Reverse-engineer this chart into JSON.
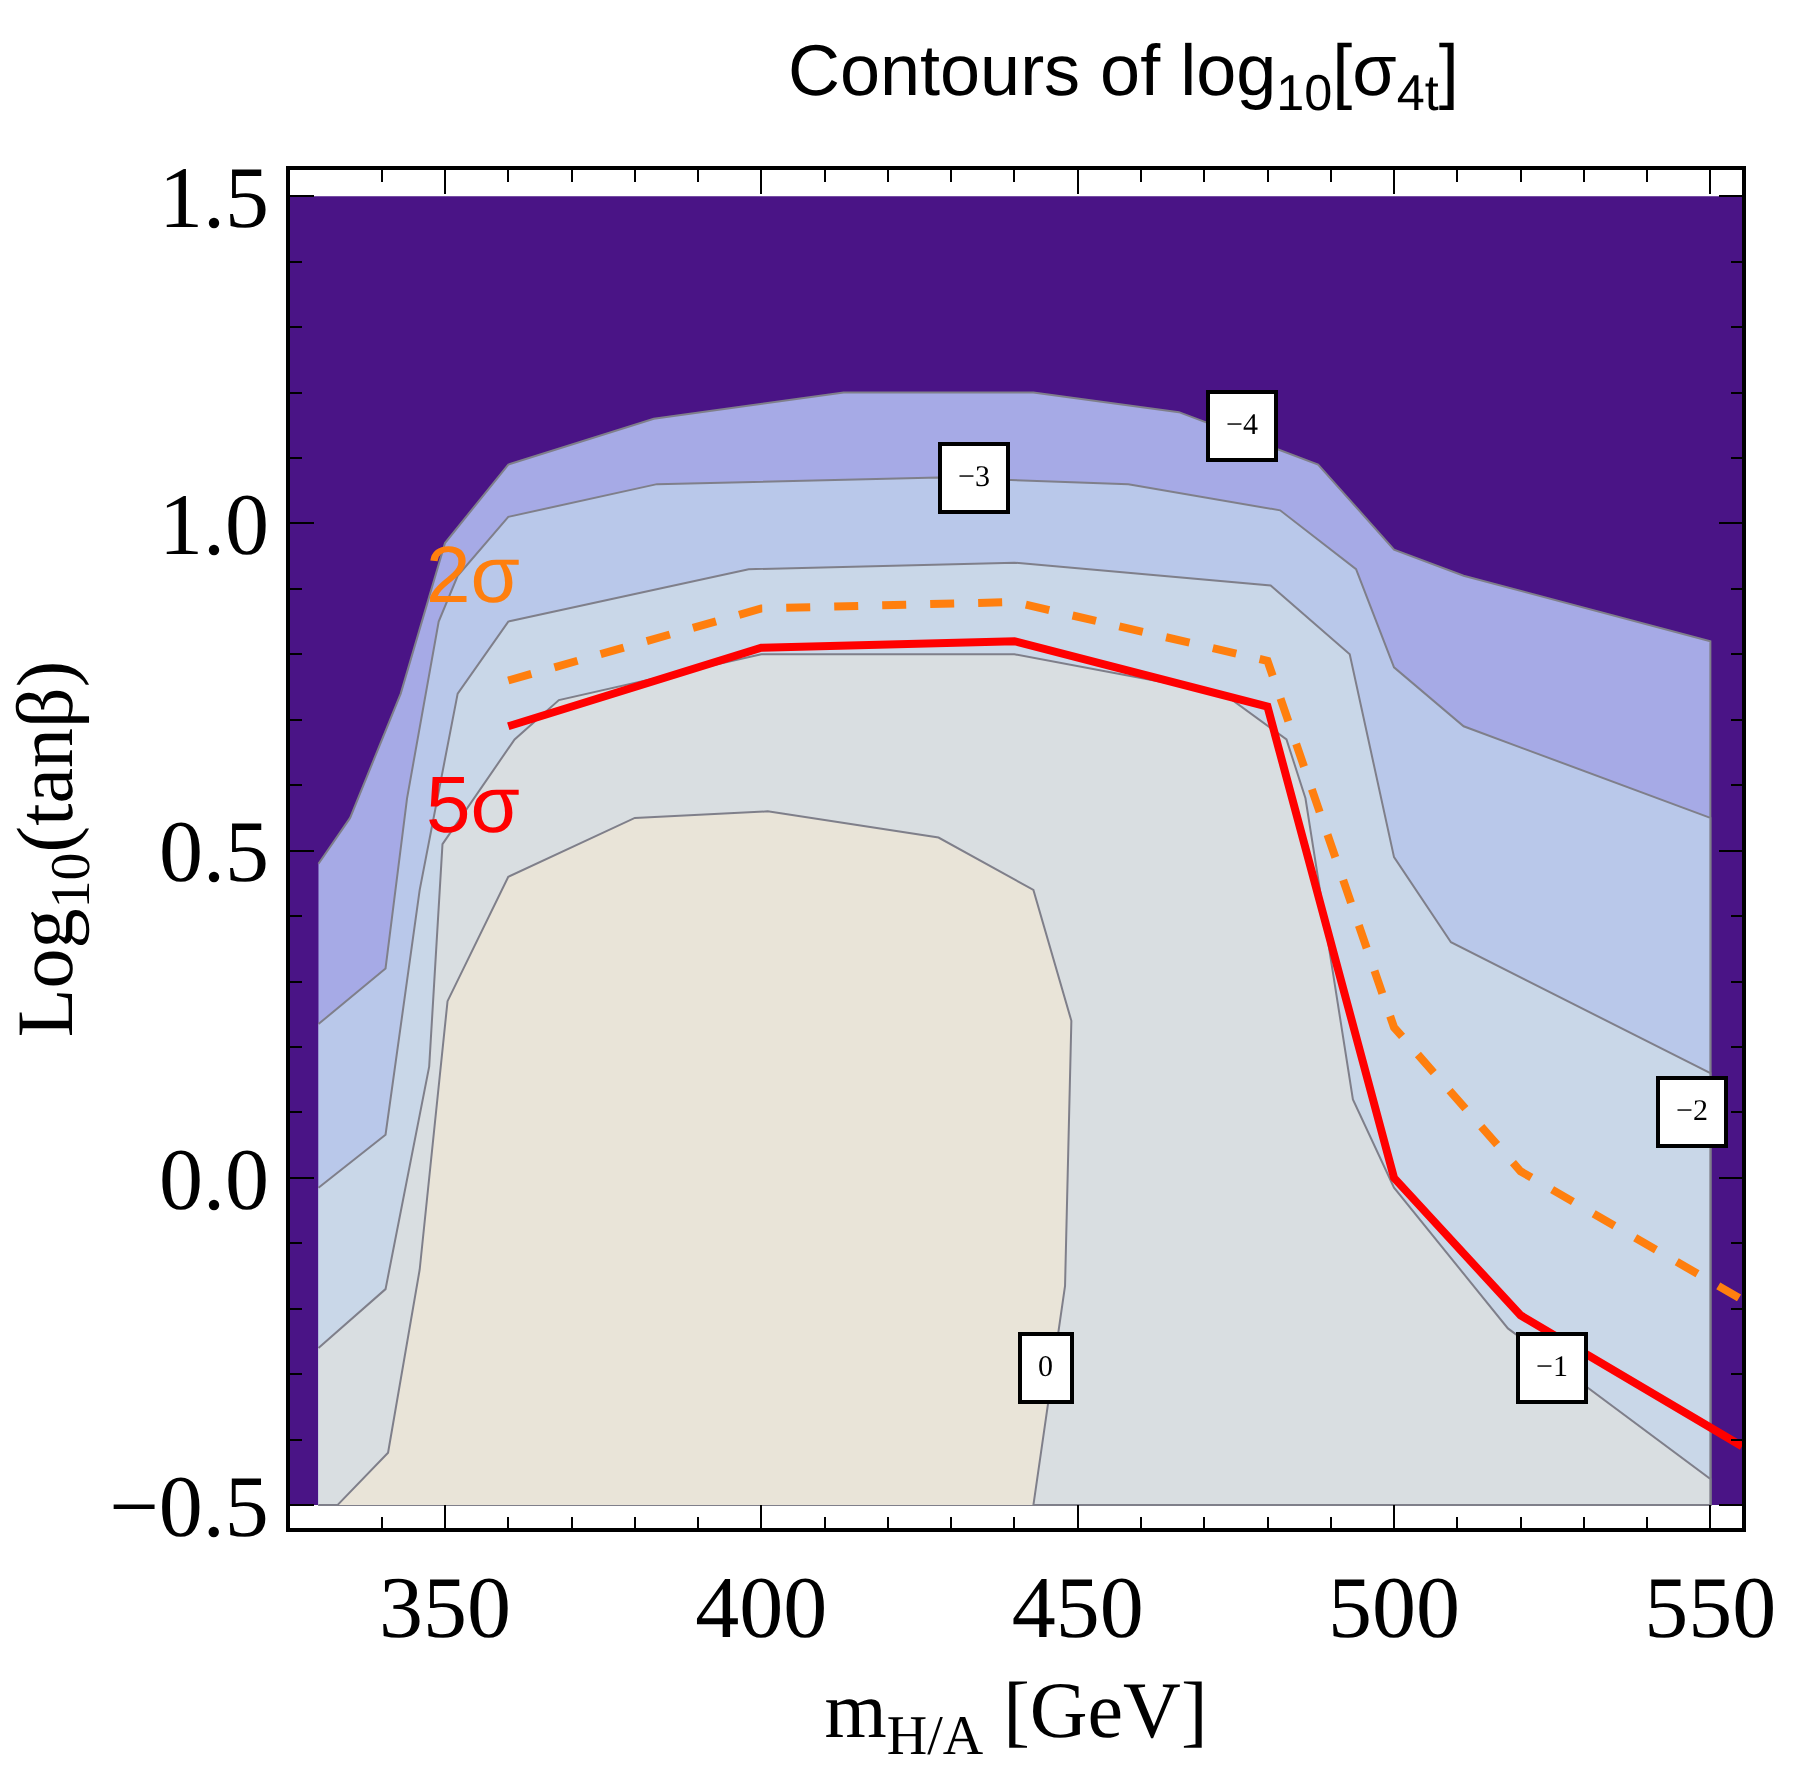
{
  "chart_data": {
    "type": "area",
    "title": "Contours of log$_{10}$[σ$_{4t}$]",
    "xlabel": "m$_{H/A}$ [GeV]",
    "ylabel": "Log$_{10}$(tanβ)",
    "xlim": [
      325.5,
      555
    ],
    "ylim": [
      -0.535,
      1.54
    ],
    "xticks": [
      {
        "value": 340,
        "label": null
      },
      350,
      {
        "value": 360,
        "label": null
      },
      {
        "value": 370,
        "label": null
      },
      {
        "value": 380,
        "label": null
      },
      {
        "value": 390,
        "label": null
      },
      400,
      {
        "value": 410,
        "label": null
      },
      {
        "value": 420,
        "label": null
      },
      {
        "value": 430,
        "label": null
      },
      {
        "value": 440,
        "label": null
      },
      450,
      {
        "value": 460,
        "label": null
      },
      {
        "value": 470,
        "label": null
      },
      {
        "value": 480,
        "label": null
      },
      {
        "value": 490,
        "label": null
      },
      500,
      {
        "value": 510,
        "label": null
      },
      {
        "value": 520,
        "label": null
      },
      {
        "value": 530,
        "label": null
      },
      {
        "value": 540,
        "label": null
      },
      550
    ],
    "yticks": [
      {
        "value": -0.5,
        "label": "−0.5"
      },
      {
        "value": -0.4,
        "label": null
      },
      {
        "value": -0.3,
        "label": null
      },
      {
        "value": -0.2,
        "label": null
      },
      {
        "value": -0.1,
        "label": null
      },
      {
        "value": 0,
        "label": "0.0"
      },
      {
        "value": 0.1,
        "label": null
      },
      {
        "value": 0.2,
        "label": null
      },
      {
        "value": 0.3,
        "label": null
      },
      {
        "value": 0.4,
        "label": null
      },
      {
        "value": 0.5,
        "label": "0.5"
      },
      {
        "value": 0.6,
        "label": null
      },
      {
        "value": 0.7,
        "label": null
      },
      {
        "value": 0.8,
        "label": null
      },
      {
        "value": 0.9,
        "label": null
      },
      {
        "value": 1.0,
        "label": "1.0"
      },
      {
        "value": 1.1,
        "label": null
      },
      {
        "value": 1.2,
        "label": null
      },
      {
        "value": 1.3,
        "label": null
      },
      {
        "value": 1.4,
        "label": null
      },
      {
        "value": 1.5,
        "label": "1.5"
      }
    ],
    "grid": false,
    "legend": false,
    "bands": [
      {
        "axis": "y",
        "from": -0.5,
        "to": 1.5,
        "color": "#4a1486"
      }
    ],
    "series": [
      {
        "color": "#a6aae6",
        "x": [
          330,
          335,
          343,
          350,
          360,
          383,
          413,
          443,
          466,
          488,
          500,
          511,
          550,
          550,
          330
        ],
        "values": [
          0.48,
          0.55,
          0.74,
          0.97,
          1.09,
          1.16,
          1.2,
          1.2,
          1.17,
          1.09,
          0.96,
          0.92,
          0.82,
          -0.5,
          -0.5
        ]
      },
      {
        "color": "#b9c8ea",
        "x": [
          330,
          340.6,
          344,
          349,
          352,
          360,
          383.5,
          428,
          458,
          482,
          494,
          500,
          511,
          550,
          550,
          330
        ],
        "values": [
          0.235,
          0.32,
          0.58,
          0.85,
          0.92,
          1.01,
          1.06,
          1.07,
          1.06,
          1.02,
          0.93,
          0.78,
          0.69,
          0.55,
          -0.5,
          -0.5
        ]
      },
      {
        "color": "#c9d7e8",
        "x": [
          330,
          340.6,
          346,
          352,
          360,
          398,
          440,
          480.5,
          493,
          500,
          509,
          550,
          550,
          330
        ],
        "values": [
          -0.015,
          0.066,
          0.44,
          0.74,
          0.85,
          0.93,
          0.94,
          0.905,
          0.8,
          0.49,
          0.36,
          0.16,
          -0.5,
          -0.5
        ]
      },
      {
        "color": "#d9dee1",
        "x": [
          330,
          340.6,
          347.5,
          349.6,
          361,
          368,
          400,
          440,
          473,
          483,
          486,
          493.5,
          500,
          518,
          550,
          550,
          330
        ],
        "values": [
          -0.26,
          -0.17,
          0.17,
          0.51,
          0.67,
          0.73,
          0.8,
          0.8,
          0.74,
          0.67,
          0.58,
          0.12,
          -0.015,
          -0.23,
          -0.46,
          -0.5,
          -0.5
        ]
      },
      {
        "color": "#e9e4d8",
        "x": [
          333,
          341,
          346,
          350.4,
          360,
          380,
          401,
          428,
          443,
          449,
          448,
          443
        ],
        "values": [
          -0.5,
          -0.42,
          -0.14,
          0.27,
          0.46,
          0.55,
          0.56,
          0.52,
          0.44,
          0.24,
          -0.165,
          -0.5
        ]
      },
      {
        "type": "line",
        "name": "2σ",
        "color": "#ff7f0e",
        "line_style": "dashed",
        "x": [
          360,
          400,
          440,
          480,
          500,
          520,
          555
        ],
        "values": [
          0.76,
          0.87,
          0.88,
          0.79,
          0.23,
          0.01,
          -0.186
        ]
      },
      {
        "type": "line",
        "name": "5σ",
        "color": "#ff0000",
        "line_style": "solid",
        "x": [
          360,
          400,
          440,
          480,
          500,
          520,
          555
        ],
        "values": [
          0.69,
          0.81,
          0.82,
          0.72,
          0.0,
          -0.21,
          -0.41
        ]
      }
    ],
    "annotations": [
      {
        "text": "−4",
        "x": 476,
        "y": 1.15
      },
      {
        "text": "−3",
        "x": 433.5,
        "y": 1.07
      },
      {
        "text": "−2",
        "x": 547,
        "y": 0.1
      },
      {
        "text": "−1",
        "x": 525,
        "y": -0.29
      },
      {
        "text": "0",
        "x": 445,
        "y": -0.29
      }
    ]
  }
}
